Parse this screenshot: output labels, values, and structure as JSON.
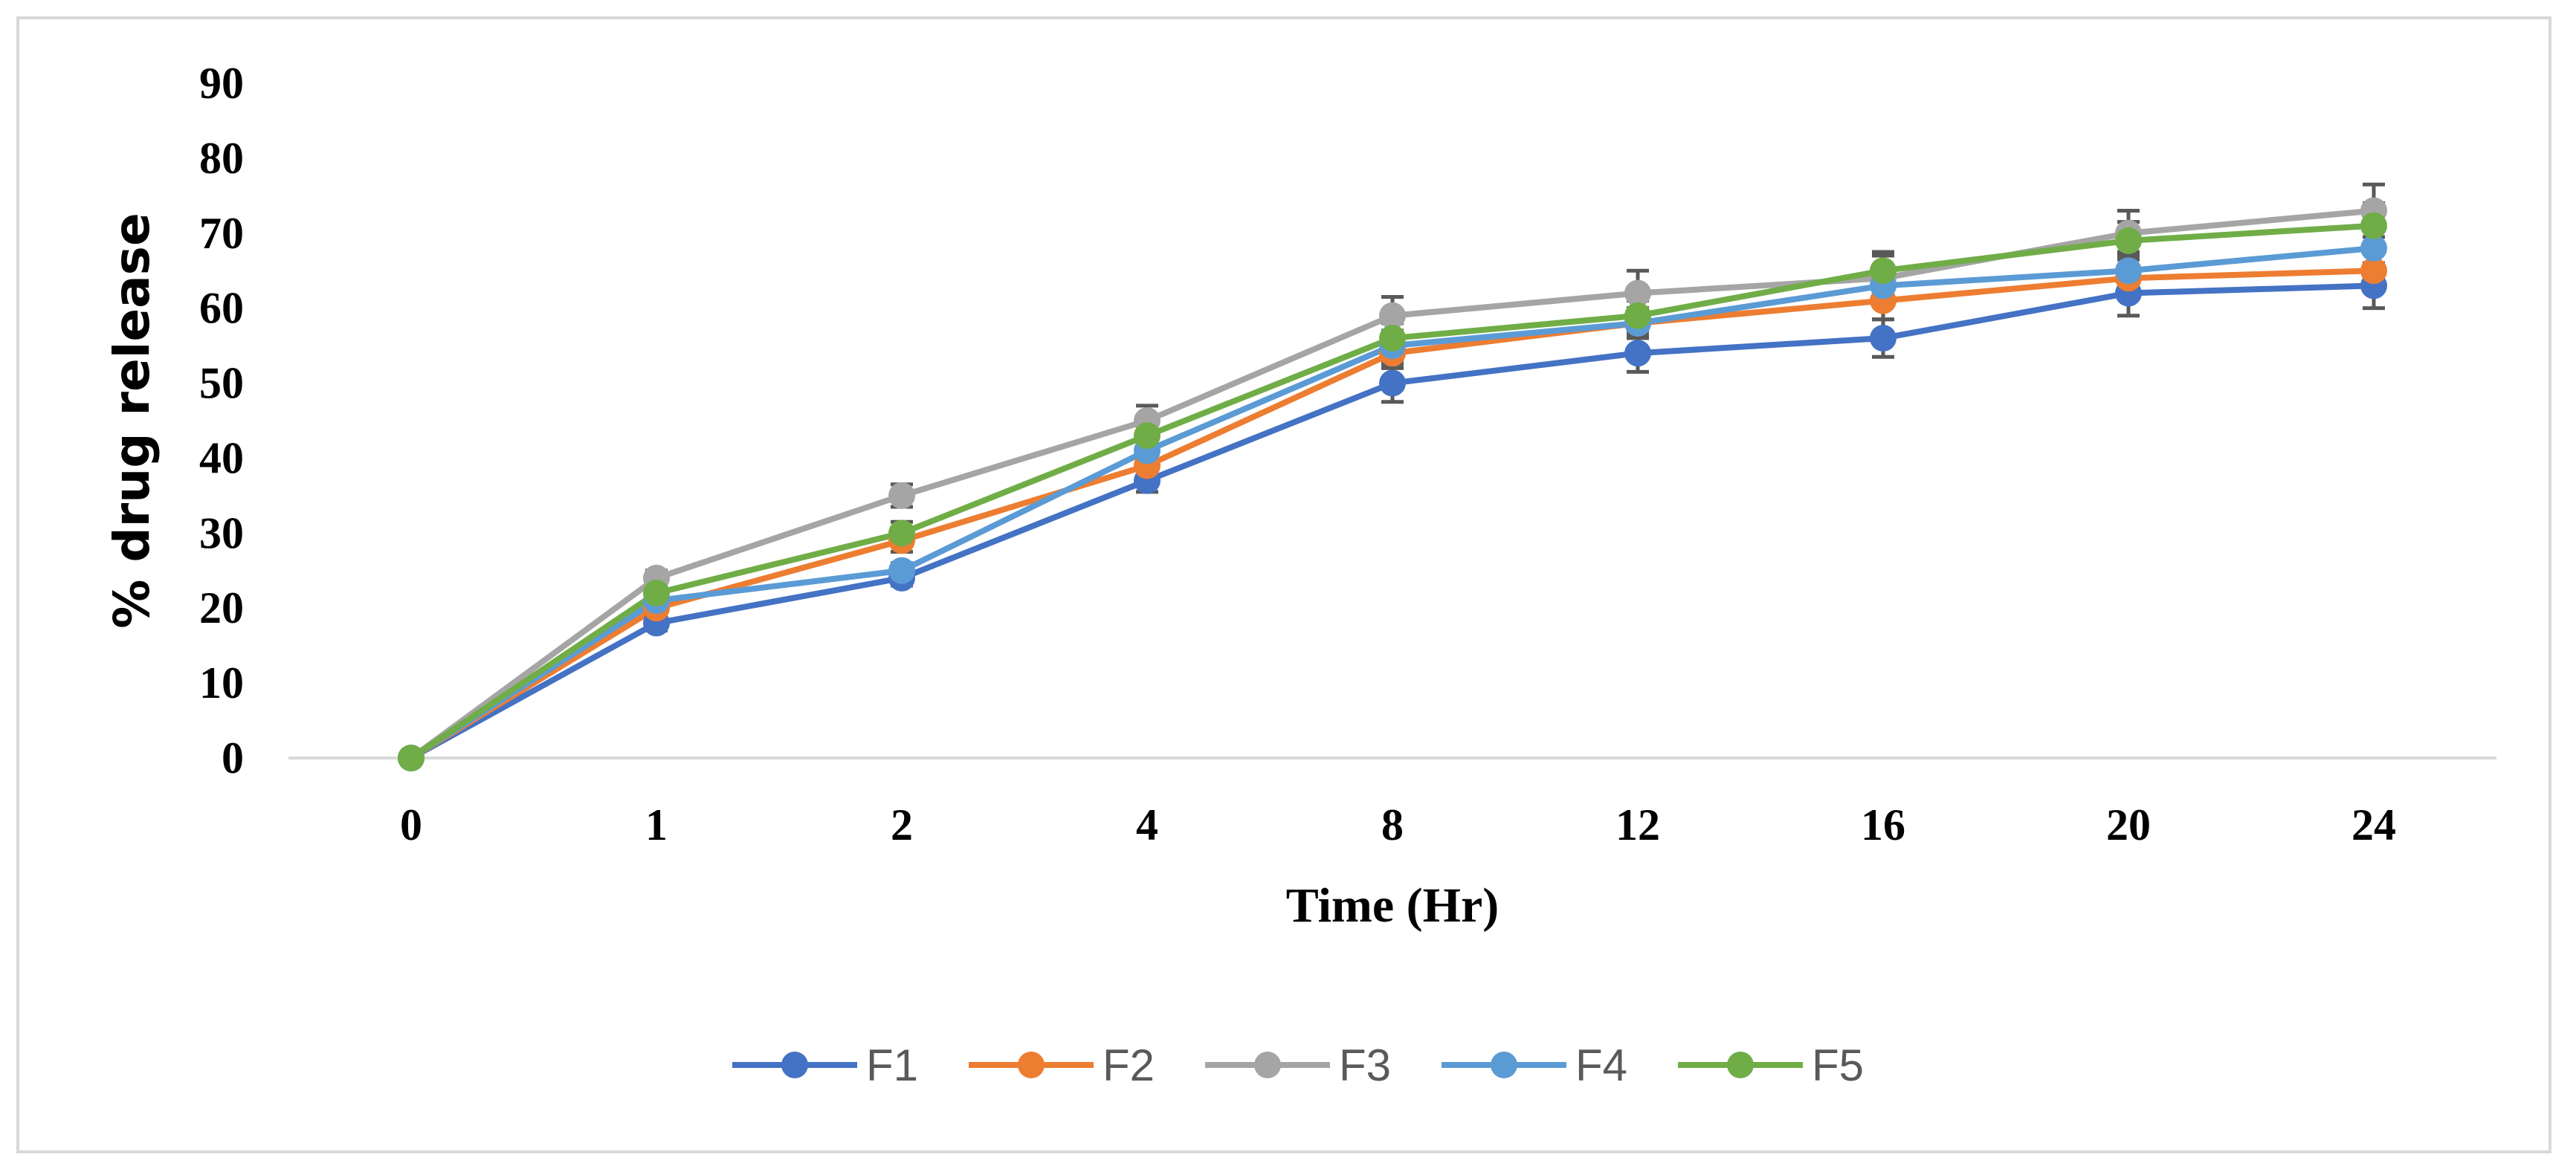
{
  "chart_data": {
    "type": "line",
    "title": "",
    "xlabel": "Time (Hr)",
    "ylabel": "% drug release",
    "categories": [
      "0",
      "1",
      "2",
      "4",
      "8",
      "12",
      "16",
      "20",
      "24"
    ],
    "ylim": [
      0,
      90
    ],
    "yticks": [
      "0",
      "10",
      "20",
      "30",
      "40",
      "50",
      "60",
      "70",
      "80",
      "90"
    ],
    "grid": false,
    "legend_position": "bottom",
    "error_bars": true,
    "series": [
      {
        "name": "F1",
        "color": "#4472C4",
        "values": [
          0,
          18,
          24,
          37,
          50,
          54,
          56,
          62,
          63
        ],
        "errors": [
          0,
          1,
          1,
          1.5,
          2.5,
          2.5,
          2.5,
          3,
          3
        ]
      },
      {
        "name": "F2",
        "color": "#ED7D31",
        "values": [
          0,
          20,
          29,
          39,
          54,
          58,
          61,
          64,
          65
        ],
        "errors": [
          0,
          1,
          1.5,
          1.5,
          2,
          2,
          2.5,
          2.5,
          2.5
        ]
      },
      {
        "name": "F3",
        "color": "#A5A5A5",
        "values": [
          0,
          24,
          35,
          45,
          59,
          62,
          64,
          70,
          73
        ],
        "errors": [
          0,
          1,
          1.5,
          2,
          2.5,
          3,
          3,
          3,
          3.5
        ]
      },
      {
        "name": "F4",
        "color": "#5B9BD5",
        "values": [
          0,
          21,
          25,
          41,
          55,
          58,
          63,
          65,
          68
        ],
        "errors": [
          0,
          1,
          1,
          1.5,
          2,
          2,
          2.5,
          2.5,
          2.5
        ]
      },
      {
        "name": "F5",
        "color": "#70AD47",
        "values": [
          0,
          22,
          30,
          43,
          56,
          59,
          65,
          69,
          71
        ],
        "errors": [
          0,
          1,
          1.5,
          1.5,
          2,
          2,
          2.5,
          2.5,
          3
        ]
      }
    ]
  }
}
